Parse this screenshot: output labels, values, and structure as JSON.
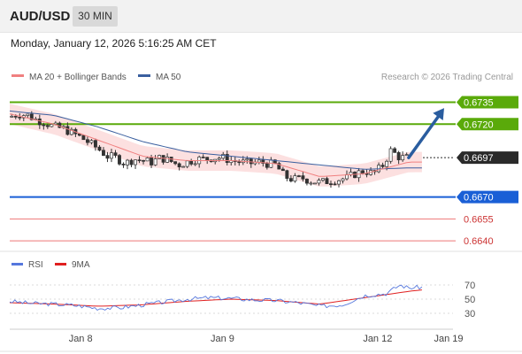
{
  "header": {
    "symbol": "AUD/USD",
    "timeframe": "30 MIN"
  },
  "timestamp": "Monday, January 12, 2026 5:16:25 AM CET",
  "colors": {
    "resistance": "#5aaa0a",
    "support": "#1a5fd6",
    "extra_support": "#ee7777",
    "current": "#2a2a2a",
    "arrow": "#2a5d9f",
    "ma20": "#f08080",
    "ma50": "#3a5f9f",
    "bands": "#fbd8d8",
    "candle_up": "#ffffff",
    "candle_down": "#333333",
    "rsi": "#5577dd",
    "rsi_ma": "#e02020"
  },
  "chart_data": [
    {
      "type": "candlestick",
      "title": "AUD/USD",
      "legend": [
        {
          "name": "MA 20 + Bollinger Bands",
          "color": "#f08080"
        },
        {
          "name": "MA 50",
          "color": "#3a5f9f"
        }
      ],
      "credit": "Research © 2026 Trading Central",
      "x_ticks": [
        {
          "label": "Jan 8",
          "t": 0.16
        },
        {
          "label": "Jan 9",
          "t": 0.48
        },
        {
          "label": "Jan 12",
          "t": 0.83
        },
        {
          "label": "Jan 19",
          "t": 0.99
        }
      ],
      "price_range": [
        0.6634,
        0.6742
      ],
      "levels": [
        {
          "label": "0.6735",
          "value": 0.6735,
          "kind": "resistance"
        },
        {
          "label": "0.6720",
          "value": 0.672,
          "kind": "resistance"
        },
        {
          "label": "0.6697",
          "value": 0.6697,
          "kind": "current"
        },
        {
          "label": "0.6670",
          "value": 0.667,
          "kind": "support"
        },
        {
          "label": "0.6655",
          "value": 0.6655,
          "kind": "extra_support"
        },
        {
          "label": "0.6640",
          "value": 0.664,
          "kind": "extra_support"
        }
      ],
      "price_path": [
        [
          0.0,
          0.6725
        ],
        [
          0.02,
          0.6727
        ],
        [
          0.04,
          0.6726
        ],
        [
          0.06,
          0.6723
        ],
        [
          0.08,
          0.6721
        ],
        [
          0.1,
          0.6718
        ],
        [
          0.12,
          0.6717
        ],
        [
          0.14,
          0.6714
        ],
        [
          0.16,
          0.6711
        ],
        [
          0.18,
          0.6707
        ],
        [
          0.2,
          0.6703
        ],
        [
          0.22,
          0.6698
        ],
        [
          0.24,
          0.6697
        ],
        [
          0.26,
          0.6693
        ],
        [
          0.28,
          0.6696
        ],
        [
          0.3,
          0.6695
        ],
        [
          0.32,
          0.6694
        ],
        [
          0.34,
          0.6697
        ],
        [
          0.36,
          0.6695
        ],
        [
          0.38,
          0.6692
        ],
        [
          0.4,
          0.6694
        ],
        [
          0.42,
          0.6696
        ],
        [
          0.44,
          0.6696
        ],
        [
          0.46,
          0.6697
        ],
        [
          0.48,
          0.6697
        ],
        [
          0.5,
          0.6695
        ],
        [
          0.52,
          0.6694
        ],
        [
          0.54,
          0.6693
        ],
        [
          0.56,
          0.6694
        ],
        [
          0.58,
          0.6693
        ],
        [
          0.6,
          0.6692
        ],
        [
          0.62,
          0.6684
        ],
        [
          0.64,
          0.6682
        ],
        [
          0.66,
          0.6683
        ],
        [
          0.68,
          0.6681
        ],
        [
          0.7,
          0.668
        ],
        [
          0.72,
          0.6681
        ],
        [
          0.74,
          0.6682
        ],
        [
          0.76,
          0.6683
        ],
        [
          0.78,
          0.6686
        ],
        [
          0.8,
          0.6688
        ],
        [
          0.82,
          0.6686
        ],
        [
          0.84,
          0.6691
        ],
        [
          0.86,
          0.6702
        ],
        [
          0.88,
          0.6697
        ],
        [
          0.9,
          0.6697
        ]
      ],
      "ma20_path": [
        [
          0.0,
          0.6727
        ],
        [
          0.1,
          0.672
        ],
        [
          0.2,
          0.6709
        ],
        [
          0.3,
          0.6698
        ],
        [
          0.4,
          0.6695
        ],
        [
          0.5,
          0.6695
        ],
        [
          0.6,
          0.6693
        ],
        [
          0.7,
          0.6684
        ],
        [
          0.8,
          0.6686
        ],
        [
          0.9,
          0.6694
        ]
      ],
      "ma50_path": [
        [
          0.0,
          0.6729
        ],
        [
          0.1,
          0.6726
        ],
        [
          0.2,
          0.6718
        ],
        [
          0.3,
          0.6708
        ],
        [
          0.4,
          0.6701
        ],
        [
          0.5,
          0.6698
        ],
        [
          0.6,
          0.6695
        ],
        [
          0.7,
          0.6692
        ],
        [
          0.8,
          0.6689
        ],
        [
          0.9,
          0.669
        ]
      ],
      "band_width": 0.0007,
      "forecast_arrow": {
        "from": [
          0.9,
          0.6697
        ],
        "to": [
          0.98,
          0.6731
        ]
      }
    },
    {
      "type": "line",
      "title": "RSI",
      "legend": [
        {
          "name": "RSI",
          "color": "#5577dd"
        },
        {
          "name": "9MA",
          "color": "#e02020"
        }
      ],
      "y_ticks": [
        "70",
        "50",
        "30"
      ],
      "ylim": [
        10,
        90
      ],
      "rsi_path": [
        [
          0.0,
          47
        ],
        [
          0.05,
          44
        ],
        [
          0.1,
          43
        ],
        [
          0.15,
          41
        ],
        [
          0.2,
          37
        ],
        [
          0.25,
          38
        ],
        [
          0.3,
          42
        ],
        [
          0.35,
          46
        ],
        [
          0.4,
          50
        ],
        [
          0.45,
          52
        ],
        [
          0.5,
          51
        ],
        [
          0.55,
          49
        ],
        [
          0.6,
          48
        ],
        [
          0.65,
          45
        ],
        [
          0.7,
          40
        ],
        [
          0.75,
          42
        ],
        [
          0.8,
          55
        ],
        [
          0.85,
          58
        ],
        [
          0.88,
          70
        ],
        [
          0.9,
          66
        ],
        [
          0.93,
          67
        ]
      ],
      "ma_path": [
        [
          0.0,
          45
        ],
        [
          0.1,
          43
        ],
        [
          0.2,
          40
        ],
        [
          0.3,
          42
        ],
        [
          0.4,
          47
        ],
        [
          0.5,
          50
        ],
        [
          0.6,
          48
        ],
        [
          0.7,
          43
        ],
        [
          0.8,
          52
        ],
        [
          0.9,
          61
        ],
        [
          0.93,
          63
        ]
      ]
    }
  ]
}
